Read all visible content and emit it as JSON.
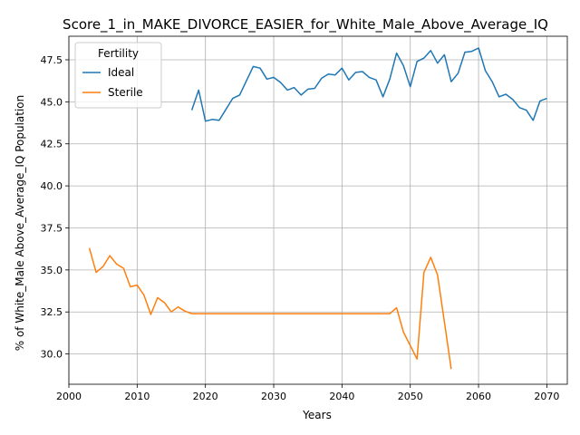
{
  "chart_data": {
    "type": "line",
    "title": "Score_1_in_MAKE_DIVORCE_EASIER_for_White_Male_Above_Average_IQ",
    "xlabel": "Years",
    "ylabel": "% of White_Male Above_Average_IQ Population",
    "xlim": [
      2000,
      2073
    ],
    "ylim": [
      28.2,
      48.9
    ],
    "xticks": [
      2000,
      2010,
      2020,
      2030,
      2040,
      2050,
      2060,
      2070
    ],
    "yticks": [
      30.0,
      32.5,
      35.0,
      37.5,
      40.0,
      42.5,
      45.0,
      47.5
    ],
    "grid": true,
    "legend": {
      "title": "Fertility",
      "placement": "upper-left"
    },
    "series": [
      {
        "name": "Ideal",
        "color": "#1f77b4",
        "x": [
          2018,
          2019,
          2020,
          2021,
          2022,
          2023,
          2024,
          2025,
          2026,
          2027,
          2028,
          2029,
          2030,
          2031,
          2032,
          2033,
          2034,
          2035,
          2036,
          2037,
          2038,
          2039,
          2040,
          2041,
          2042,
          2043,
          2044,
          2045,
          2046,
          2047,
          2048,
          2049,
          2050,
          2051,
          2052,
          2053,
          2054,
          2055,
          2056,
          2057,
          2058,
          2059,
          2060,
          2061,
          2062,
          2063,
          2064,
          2065,
          2066,
          2067,
          2068,
          2069,
          2070
        ],
        "values": [
          44.5,
          45.7,
          43.85,
          43.95,
          43.9,
          44.55,
          45.2,
          45.4,
          46.25,
          47.1,
          47.0,
          46.35,
          46.45,
          46.15,
          45.7,
          45.85,
          45.4,
          45.75,
          45.8,
          46.4,
          46.65,
          46.6,
          47.0,
          46.3,
          46.75,
          46.8,
          46.45,
          46.3,
          45.3,
          46.35,
          47.9,
          47.15,
          45.9,
          47.4,
          47.6,
          48.05,
          47.3,
          47.8,
          46.2,
          46.7,
          47.95,
          48.0,
          48.2,
          46.85,
          46.2,
          45.3,
          45.45,
          45.15,
          44.65,
          44.5,
          43.9,
          45.05,
          45.2
        ]
      },
      {
        "name": "Sterile",
        "color": "#ff7f0e",
        "x": [
          2003,
          2004,
          2005,
          2006,
          2007,
          2008,
          2009,
          2010,
          2011,
          2012,
          2013,
          2014,
          2015,
          2016,
          2017,
          2018,
          2019,
          2020,
          2021,
          2022,
          2023,
          2024,
          2025,
          2026,
          2027,
          2028,
          2029,
          2030,
          2031,
          2032,
          2033,
          2034,
          2035,
          2036,
          2037,
          2038,
          2039,
          2040,
          2041,
          2042,
          2043,
          2044,
          2045,
          2046,
          2047,
          2048,
          2049,
          2050,
          2051,
          2052,
          2053,
          2054,
          2055,
          2056
        ],
        "values": [
          36.3,
          34.85,
          35.2,
          35.85,
          35.35,
          35.1,
          34.0,
          34.1,
          33.5,
          32.35,
          33.35,
          33.05,
          32.5,
          32.8,
          32.55,
          32.4,
          32.4,
          32.4,
          32.4,
          32.4,
          32.4,
          32.4,
          32.4,
          32.4,
          32.4,
          32.4,
          32.4,
          32.4,
          32.4,
          32.4,
          32.4,
          32.4,
          32.4,
          32.4,
          32.4,
          32.4,
          32.4,
          32.4,
          32.4,
          32.4,
          32.4,
          32.4,
          32.4,
          32.4,
          32.4,
          32.75,
          31.3,
          30.5,
          29.7,
          34.85,
          35.75,
          34.7,
          31.9,
          29.1
        ]
      }
    ]
  }
}
